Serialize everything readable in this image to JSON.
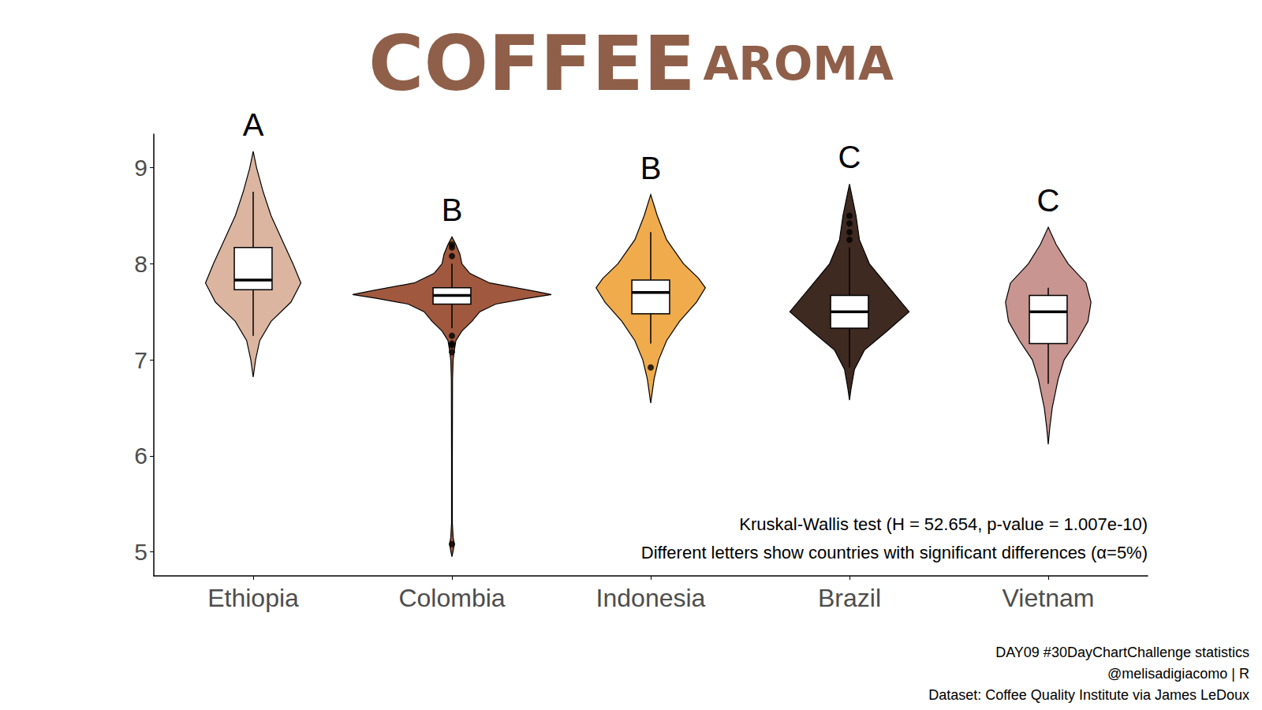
{
  "chart_data": {
    "type": "violin",
    "title": "COFFEE",
    "subtitle": "AROMA",
    "categories": [
      "Ethiopia",
      "Colombia",
      "Indonesia",
      "Brazil",
      "Vietnam"
    ],
    "colors": [
      "#dbb5a0",
      "#a0593f",
      "#efab4c",
      "#3f2a22",
      "#c99590"
    ],
    "letters": [
      "A",
      "B",
      "B",
      "C",
      "C"
    ],
    "boxes": [
      [
        7.25,
        7.73,
        7.83,
        8.17,
        8.75
      ],
      [
        7.33,
        7.58,
        7.67,
        7.75,
        8.0
      ],
      [
        7.17,
        7.48,
        7.7,
        7.83,
        8.33
      ],
      [
        6.92,
        7.33,
        7.5,
        7.67,
        8.17
      ],
      [
        6.75,
        7.17,
        7.5,
        7.67,
        7.75
      ]
    ],
    "outliers": [
      [],
      [
        8.08,
        8.17,
        8.2,
        7.25,
        7.17,
        7.15,
        7.08,
        5.08
      ],
      [
        6.92
      ],
      [
        8.25,
        8.33,
        8.42,
        8.5
      ],
      []
    ],
    "violins": [
      {
        "y": [
          9.17,
          9.0,
          8.75,
          8.5,
          8.25,
          8.0,
          7.8,
          7.6,
          7.4,
          7.2,
          7.0,
          6.82
        ],
        "width": [
          0,
          0.017,
          0.05,
          0.09,
          0.145,
          0.2,
          0.24,
          0.19,
          0.09,
          0.033,
          0.012,
          0
        ]
      },
      {
        "y": [
          8.28,
          8.2,
          8.1,
          8.0,
          7.9,
          7.8,
          7.72,
          7.68,
          7.64,
          7.58,
          7.5,
          7.4,
          7.3,
          7.2,
          7.1,
          7.0,
          6.8,
          6.0,
          5.3,
          5.15,
          5.08,
          5.0,
          4.95
        ],
        "width": [
          0,
          0.02,
          0.04,
          0.05,
          0.09,
          0.19,
          0.4,
          0.5,
          0.38,
          0.22,
          0.14,
          0.1,
          0.05,
          0.02,
          0.012,
          0.006,
          0.003,
          0.002,
          0.002,
          0.006,
          0.012,
          0.005,
          0
        ]
      },
      {
        "y": [
          8.72,
          8.5,
          8.25,
          8.0,
          7.85,
          7.75,
          7.6,
          7.4,
          7.2,
          7.0,
          6.8,
          6.55
        ],
        "width": [
          0,
          0.033,
          0.08,
          0.165,
          0.24,
          0.275,
          0.23,
          0.145,
          0.08,
          0.04,
          0.017,
          0
        ]
      },
      {
        "y": [
          8.83,
          8.5,
          8.25,
          8.0,
          7.75,
          7.5,
          7.3,
          7.1,
          6.9,
          6.7,
          6.58
        ],
        "width": [
          0,
          0.033,
          0.05,
          0.1,
          0.2,
          0.3,
          0.19,
          0.075,
          0.025,
          0.008,
          0
        ]
      },
      {
        "y": [
          8.38,
          8.2,
          8.0,
          7.8,
          7.6,
          7.4,
          7.2,
          7.0,
          6.8,
          6.5,
          6.3,
          6.12
        ],
        "width": [
          0,
          0.04,
          0.1,
          0.19,
          0.215,
          0.2,
          0.145,
          0.08,
          0.05,
          0.02,
          0.008,
          0
        ]
      }
    ],
    "ylim": [
      4.75,
      9.35
    ],
    "yticks": [
      5,
      6,
      7,
      8,
      9
    ],
    "grid": false,
    "annotations": [
      "Kruskal-Wallis test (H = 52.654, p-value = 1.007e-10)",
      "Different letters show countries with significant differences (α=5%)"
    ],
    "caption": [
      "DAY09 #30DayChartChallenge statistics",
      "@melisadigiacomo | R",
      "Dataset: Coffee Quality Institute via James LeDoux"
    ]
  }
}
